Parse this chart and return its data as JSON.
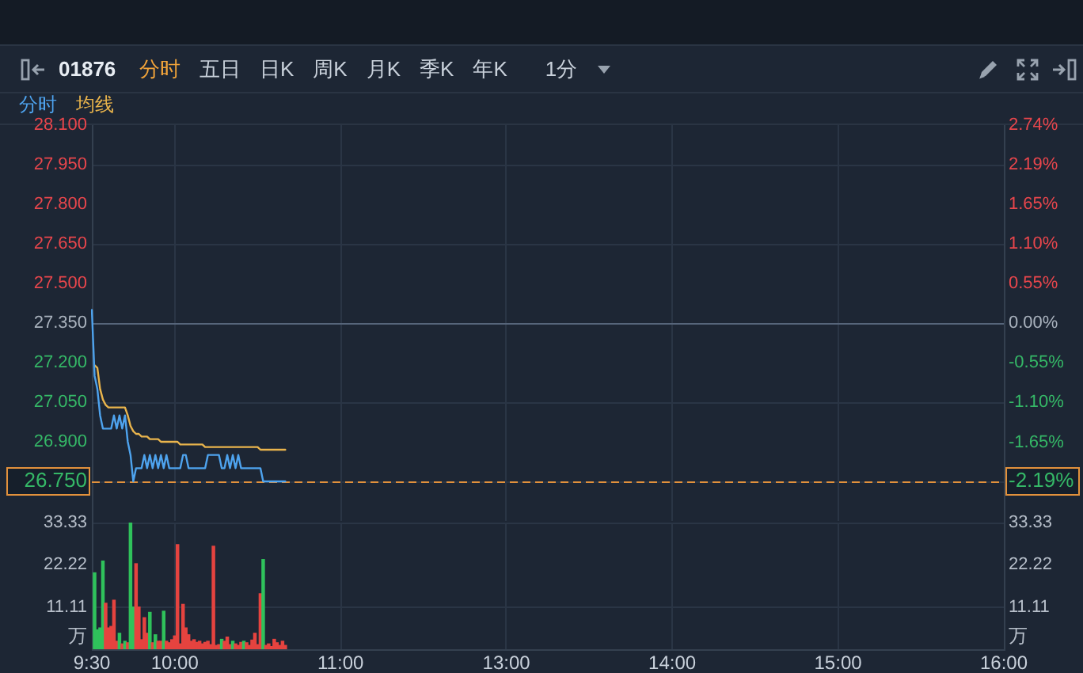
{
  "chart_data": [
    {
      "type": "line",
      "title": "01876",
      "annotations": [
        "分时",
        "五日",
        "日K",
        "周K",
        "月K",
        "季K",
        "年K",
        "1分"
      ],
      "categories": [
        null,
        null,
        null,
        null,
        null,
        null,
        null,
        null,
        null,
        null,
        null,
        null,
        null,
        null,
        null,
        null,
        null,
        null,
        null,
        null,
        null,
        null,
        null,
        null,
        null,
        null,
        null,
        null,
        null,
        null,
        null,
        null,
        null,
        null,
        null,
        null,
        null,
        null,
        null,
        null,
        null,
        null,
        null,
        null,
        null,
        null,
        null,
        null,
        null,
        null,
        null,
        null,
        null,
        null,
        null,
        null,
        null,
        null,
        null,
        null,
        null,
        null,
        null,
        null,
        null,
        null,
        null,
        null,
        null,
        null,
        null,
        null,
        null,
        null,
        null,
        null,
        null,
        null,
        null,
        null,
        null,
        null,
        null,
        null,
        null,
        null,
        null,
        null,
        null,
        null,
        null,
        null,
        null,
        null,
        null,
        null,
        null,
        null,
        null,
        null,
        null,
        null,
        null,
        null,
        null,
        null,
        null,
        null,
        null,
        null,
        null,
        null,
        null,
        null,
        null,
        null,
        null,
        null,
        null,
        null,
        null,
        null,
        null,
        null,
        null,
        null,
        null,
        null,
        null,
        null,
        null,
        null,
        null,
        null,
        null,
        null,
        null,
        null,
        null,
        null,
        null,
        null,
        null,
        null,
        null,
        null,
        null,
        null,
        null,
        null,
        null,
        null,
        null,
        null,
        null,
        null,
        null,
        null,
        null,
        null,
        null,
        null,
        null,
        null,
        null,
        null,
        null,
        null,
        null,
        null,
        null,
        null,
        null,
        null,
        null,
        null,
        null,
        null,
        null,
        null,
        null,
        null,
        null,
        null,
        null,
        null,
        null,
        null,
        null,
        null,
        null,
        null,
        null,
        null,
        null,
        null,
        null,
        null,
        null,
        null,
        null,
        null,
        null,
        null,
        null,
        null,
        null,
        null,
        null,
        null,
        null,
        null,
        null,
        null,
        null,
        null,
        null,
        null,
        null,
        null,
        null,
        null,
        null,
        null,
        null,
        null,
        null,
        null,
        null,
        null,
        null,
        null,
        null,
        null,
        null,
        null,
        null,
        null,
        null,
        null,
        null,
        null,
        null,
        null,
        null,
        null,
        null,
        null,
        null,
        null,
        null,
        null,
        null,
        null,
        null,
        null,
        null,
        null,
        null,
        null,
        null,
        null,
        null,
        null,
        null,
        null,
        null,
        null,
        null,
        null,
        null,
        null,
        null,
        null,
        null,
        null,
        null,
        null,
        null,
        null,
        null,
        null,
        null,
        null,
        null,
        null,
        null,
        null,
        null,
        null,
        null,
        null,
        null,
        null,
        null,
        null,
        null,
        null,
        null,
        null,
        null,
        null,
        null,
        null,
        null,
        null,
        null,
        null,
        null,
        null,
        null,
        null,
        null,
        null,
        null,
        null,
        null,
        null,
        null,
        null,
        null,
        null,
        null,
        null,
        null,
        null,
        null,
        null,
        null,
        null,
        null
      ],
      "series": [
        {
          "name": "分时",
          "color": "#4ea3ee",
          "values": [
            27.4,
            27.15,
            27.1,
            27.0,
            26.95,
            26.95,
            26.95,
            26.95,
            27.0,
            26.95,
            27.0,
            26.95,
            27.0,
            26.9,
            26.85,
            26.75,
            26.8,
            26.8,
            26.8,
            26.85,
            26.8,
            26.85,
            26.8,
            26.85,
            26.8,
            26.85,
            26.8,
            26.85,
            26.8,
            26.8,
            26.8,
            26.8,
            26.8,
            26.85,
            26.85,
            26.8,
            26.8,
            26.8,
            26.8,
            26.8,
            26.8,
            26.8,
            26.85,
            26.85,
            26.85,
            26.85,
            26.85,
            26.8,
            26.8,
            26.85,
            26.8,
            26.85,
            26.8,
            26.85,
            26.8,
            26.8,
            26.8,
            26.8,
            26.8,
            26.8,
            26.8,
            26.8,
            26.75,
            26.75,
            26.75,
            26.75,
            26.75,
            26.75,
            26.75,
            26.75,
            26.75,
            null,
            null,
            null,
            null,
            null,
            null,
            null,
            null,
            null,
            null,
            null,
            null,
            null,
            null,
            null,
            null,
            null,
            null,
            null,
            null,
            null,
            null,
            null,
            null,
            null,
            null,
            null,
            null,
            null,
            null,
            null,
            null,
            null,
            null,
            null,
            null,
            null,
            null,
            null,
            null,
            null,
            null,
            null,
            null,
            null,
            null,
            null,
            null,
            null,
            null,
            null,
            null,
            null,
            null,
            null,
            null,
            null,
            null,
            null,
            null,
            null,
            null,
            null,
            null,
            null,
            null,
            null,
            null,
            null,
            null,
            null,
            null,
            null,
            null,
            null,
            null,
            null,
            null,
            null,
            null,
            null,
            null,
            null,
            null,
            null,
            null,
            null,
            null,
            null,
            null,
            null,
            null,
            null,
            null,
            null,
            null,
            null,
            null,
            null,
            null,
            null,
            null,
            null,
            null,
            null,
            null,
            null,
            null,
            null,
            null,
            null,
            null,
            null,
            null,
            null,
            null,
            null,
            null,
            null,
            null,
            null,
            null,
            null,
            null,
            null,
            null,
            null,
            null,
            null,
            null,
            null,
            null,
            null,
            null,
            null,
            null,
            null,
            null,
            null,
            null,
            null,
            null,
            null,
            null,
            null,
            null,
            null,
            null,
            null,
            null,
            null,
            null,
            null,
            null,
            null,
            null,
            null,
            null,
            null,
            null,
            null,
            null,
            null,
            null,
            null,
            null,
            null,
            null,
            null,
            null,
            null,
            null,
            null,
            null,
            null,
            null,
            null,
            null,
            null,
            null,
            null,
            null,
            null,
            null,
            null,
            null,
            null,
            null,
            null,
            null,
            null,
            null,
            null,
            null,
            null,
            null,
            null,
            null,
            null,
            null,
            null,
            null,
            null,
            null,
            null,
            null,
            null,
            null,
            null,
            null,
            null,
            null,
            null,
            null,
            null,
            null,
            null,
            null,
            null,
            null,
            null,
            null,
            null,
            null,
            null,
            null,
            null,
            null,
            null,
            null,
            null,
            null,
            null,
            null,
            null,
            null,
            null,
            null,
            null,
            null,
            null,
            null,
            null,
            null,
            null,
            null,
            null,
            null,
            null,
            null,
            null,
            null,
            null,
            null,
            null,
            null,
            null,
            null,
            null,
            null
          ]
        },
        {
          "name": "均线",
          "color": "#e9b44c",
          "values": [
            null,
            27.19,
            27.18,
            27.1,
            27.06,
            27.04,
            27.03,
            27.03,
            27.03,
            27.03,
            27.03,
            27.03,
            27.03,
            27.0,
            26.96,
            26.94,
            26.93,
            26.93,
            26.92,
            26.92,
            26.92,
            26.91,
            26.91,
            26.91,
            26.91,
            26.9,
            26.9,
            26.9,
            26.9,
            26.9,
            26.9,
            26.9,
            26.89,
            26.89,
            26.89,
            26.89,
            26.89,
            26.89,
            26.89,
            26.89,
            26.89,
            26.88,
            26.88,
            26.88,
            26.88,
            26.88,
            26.88,
            26.88,
            26.88,
            26.88,
            26.88,
            26.88,
            26.88,
            26.88,
            26.88,
            26.88,
            26.88,
            26.88,
            26.88,
            26.88,
            26.88,
            26.87,
            26.87,
            26.87,
            26.87,
            26.87,
            26.87,
            26.87,
            26.87,
            26.87,
            26.87,
            null,
            null,
            null,
            null,
            null,
            null,
            null,
            null,
            null,
            null,
            null,
            null,
            null,
            null,
            null,
            null,
            null,
            null,
            null,
            null,
            null,
            null,
            null,
            null,
            null,
            null,
            null,
            null,
            null,
            null,
            null,
            null,
            null,
            null,
            null,
            null,
            null,
            null,
            null,
            null,
            null,
            null,
            null,
            null,
            null,
            null,
            null,
            null,
            null,
            null,
            null,
            null,
            null,
            null,
            null,
            null,
            null,
            null,
            null,
            null,
            null,
            null,
            null,
            null,
            null,
            null,
            null,
            null,
            null,
            null,
            null,
            null,
            null,
            null,
            null,
            null,
            null,
            null,
            null,
            null,
            null,
            null,
            null,
            null,
            null,
            null,
            null,
            null,
            null,
            null,
            null,
            null,
            null,
            null,
            null,
            null,
            null,
            null,
            null,
            null,
            null,
            null,
            null,
            null,
            null,
            null,
            null,
            null,
            null,
            null,
            null,
            null,
            null,
            null,
            null,
            null,
            null,
            null,
            null,
            null,
            null,
            null,
            null,
            null,
            null,
            null,
            null,
            null,
            null,
            null,
            null,
            null,
            null,
            null,
            null,
            null,
            null,
            null,
            null,
            null,
            null,
            null,
            null,
            null,
            null,
            null,
            null,
            null,
            null,
            null,
            null,
            null,
            null,
            null,
            null,
            null,
            null,
            null,
            null,
            null,
            null,
            null,
            null,
            null,
            null,
            null,
            null,
            null,
            null,
            null,
            null,
            null,
            null,
            null,
            null,
            null,
            null,
            null,
            null,
            null,
            null,
            null,
            null,
            null,
            null,
            null,
            null,
            null,
            null,
            null,
            null,
            null,
            null,
            null,
            null,
            null,
            null,
            null,
            null,
            null,
            null,
            null,
            null,
            null,
            null,
            null,
            null,
            null,
            null,
            null,
            null,
            null,
            null,
            null,
            null,
            null,
            null,
            null,
            null,
            null,
            null,
            null,
            null,
            null,
            null,
            null,
            null,
            null,
            null,
            null,
            null,
            null,
            null,
            null,
            null,
            null,
            null,
            null,
            null,
            null,
            null,
            null,
            null,
            null,
            null,
            null,
            null,
            null,
            null,
            null,
            null,
            null,
            null,
            null,
            null,
            null,
            null,
            null,
            null,
            null
          ]
        }
      ],
      "ylim": [
        26.6,
        28.1
      ],
      "yticks": [
        {
          "value": 26.75,
          "label": "26.750"
        },
        {
          "value": 26.9,
          "label": "26.900"
        },
        {
          "value": 27.05,
          "label": "27.050"
        },
        {
          "value": 27.2,
          "label": "27.200"
        },
        {
          "value": 27.35,
          "label": "27.350"
        },
        {
          "value": 27.5,
          "label": "27.500"
        },
        {
          "value": 27.65,
          "label": "27.650"
        },
        {
          "value": 27.8,
          "label": "27.800"
        },
        {
          "value": 27.95,
          "label": "27.950"
        },
        {
          "value": 28.1,
          "label": "28.100"
        }
      ],
      "y2lim": [
        -2.74,
        2.74
      ],
      "y2ticks": [
        {
          "value": -2.19,
          "label": "-2.19%"
        },
        {
          "value": -1.65,
          "label": "-1.65%"
        },
        {
          "value": -1.1,
          "label": "-1.10%"
        },
        {
          "value": -0.55,
          "label": "-0.55%"
        },
        {
          "value": 0,
          "label": "0.00%"
        },
        {
          "value": 0.55,
          "label": "0.55%"
        },
        {
          "value": 1.1,
          "label": "1.10%"
        },
        {
          "value": 1.65,
          "label": "1.65%"
        },
        {
          "value": 2.19,
          "label": "2.19%"
        },
        {
          "value": 2.74,
          "label": "2.74%"
        }
      ],
      "ref_lines": [
        {
          "axis": "y",
          "value": 27.35,
          "color": "#56657a"
        },
        {
          "axis": "y",
          "value": 26.75,
          "color": "#e2913c",
          "line_style": "dashed"
        }
      ],
      "grid": true,
      "legend": "top left",
      "tick_labels": "y"
    },
    {
      "type": "bar",
      "categories": [
        "9:30",
        null,
        null,
        null,
        null,
        null,
        null,
        null,
        null,
        null,
        null,
        null,
        null,
        null,
        null,
        null,
        null,
        null,
        null,
        null,
        null,
        null,
        null,
        null,
        null,
        null,
        null,
        null,
        null,
        null,
        "10:00",
        null,
        null,
        null,
        null,
        null,
        null,
        null,
        null,
        null,
        null,
        null,
        null,
        null,
        null,
        null,
        null,
        null,
        null,
        null,
        null,
        null,
        null,
        null,
        null,
        null,
        null,
        null,
        null,
        null,
        null,
        null,
        null,
        null,
        null,
        null,
        null,
        null,
        null,
        null,
        null,
        null,
        null,
        null,
        null,
        null,
        null,
        null,
        null,
        null,
        null,
        null,
        null,
        null,
        null,
        null,
        null,
        null,
        null,
        null,
        "11:00",
        null,
        null,
        null,
        null,
        null,
        null,
        null,
        null,
        null,
        null,
        null,
        null,
        null,
        null,
        null,
        null,
        null,
        null,
        null,
        null,
        null,
        null,
        null,
        null,
        null,
        null,
        null,
        null,
        null,
        null,
        null,
        null,
        null,
        null,
        null,
        null,
        null,
        null,
        null,
        null,
        null,
        null,
        null,
        null,
        null,
        null,
        null,
        null,
        null,
        null,
        null,
        null,
        null,
        null,
        null,
        null,
        null,
        null,
        null,
        "13:00",
        null,
        null,
        null,
        null,
        null,
        null,
        null,
        null,
        null,
        null,
        null,
        null,
        null,
        null,
        null,
        null,
        null,
        null,
        null,
        null,
        null,
        null,
        null,
        null,
        null,
        null,
        null,
        null,
        null,
        null,
        null,
        null,
        null,
        null,
        null,
        null,
        null,
        null,
        null,
        null,
        null,
        null,
        null,
        null,
        null,
        null,
        null,
        null,
        null,
        null,
        null,
        null,
        null,
        null,
        null,
        null,
        null,
        null,
        null,
        "14:00",
        null,
        null,
        null,
        null,
        null,
        null,
        null,
        null,
        null,
        null,
        null,
        null,
        null,
        null,
        null,
        null,
        null,
        null,
        null,
        null,
        null,
        null,
        null,
        null,
        null,
        null,
        null,
        null,
        null,
        null,
        null,
        null,
        null,
        null,
        null,
        null,
        null,
        null,
        null,
        null,
        null,
        null,
        null,
        null,
        null,
        null,
        null,
        null,
        null,
        null,
        null,
        null,
        null,
        null,
        null,
        null,
        null,
        null,
        null,
        "15:00",
        null,
        null,
        null,
        null,
        null,
        null,
        null,
        null,
        null,
        null,
        null,
        null,
        null,
        null,
        null,
        null,
        null,
        null,
        null,
        null,
        null,
        null,
        null,
        null,
        null,
        null,
        null,
        null,
        null,
        null,
        null,
        null,
        null,
        null,
        null,
        null,
        null,
        null,
        null,
        null,
        null,
        null,
        null,
        null,
        null,
        null,
        null,
        null,
        null,
        null,
        null,
        null,
        null,
        null,
        null,
        null,
        null,
        null,
        null,
        "16:00"
      ],
      "values": [
        null,
        20.1,
        5.1,
        5.6,
        23.2,
        12.1,
        5.6,
        6.0,
        12.9,
        2.1,
        4.2,
        1.4,
        2.1,
        1.7,
        33.3,
        11.1,
        22.5,
        11.1,
        2.5,
        8.3,
        4.2,
        9.7,
        1.7,
        3.8,
        2.1,
        2.1,
        10.0,
        2.1,
        1.7,
        2.5,
        3.5,
        27.5,
        1.4,
        11.8,
        5.6,
        3.8,
        2.1,
        2.5,
        1.8,
        2.1,
        1.4,
        1.8,
        2.1,
        1.2,
        27.1,
        1.0,
        1.2,
        2.6,
        2.1,
        3.2,
        1.2,
        2.1,
        1.4,
        1.0,
        1.8,
        2.1,
        1.7,
        1.0,
        2.4,
        4.2,
        1.2,
        14.6,
        23.6,
        1.0,
        1.4,
        0.7,
        2.6,
        1.7,
        1.0,
        2.1,
        1.0,
        null,
        null,
        null,
        null,
        null,
        null,
        null,
        null,
        null,
        null,
        null,
        null,
        null,
        null,
        null,
        null,
        null,
        null,
        null,
        null,
        null,
        null,
        null,
        null,
        null,
        null,
        null,
        null,
        null,
        null,
        null,
        null,
        null,
        null,
        null,
        null,
        null,
        null,
        null,
        null,
        null,
        null,
        null,
        null,
        null,
        null,
        null,
        null,
        null,
        null,
        null,
        null,
        null,
        null,
        null,
        null,
        null,
        null,
        null,
        null,
        null,
        null,
        null,
        null,
        null,
        null,
        null,
        null,
        null,
        null,
        null,
        null,
        null,
        null,
        null,
        null,
        null,
        null,
        null,
        null,
        null,
        null,
        null,
        null,
        null,
        null,
        null,
        null,
        null,
        null,
        null,
        null,
        null,
        null,
        null,
        null,
        null,
        null,
        null,
        null,
        null,
        null,
        null,
        null,
        null,
        null,
        null,
        null,
        null,
        null,
        null,
        null,
        null,
        null,
        null,
        null,
        null,
        null,
        null,
        null,
        null,
        null,
        null,
        null,
        null,
        null,
        null,
        null,
        null,
        null,
        null,
        null,
        null,
        null,
        null,
        null,
        null,
        null,
        null,
        null,
        null,
        null,
        null,
        null,
        null,
        null,
        null,
        null,
        null,
        null,
        null,
        null,
        null,
        null,
        null,
        null,
        null,
        null,
        null,
        null,
        null,
        null,
        null,
        null,
        null,
        null,
        null,
        null,
        null,
        null,
        null,
        null,
        null,
        null,
        null,
        null,
        null,
        null,
        null,
        null,
        null,
        null,
        null,
        null,
        null,
        null,
        null,
        null,
        null,
        null,
        null,
        null,
        null,
        null,
        null,
        null,
        null,
        null,
        null,
        null,
        null,
        null,
        null,
        null,
        null,
        null,
        null,
        null,
        null,
        null,
        null,
        null,
        null,
        null,
        null,
        null,
        null,
        null,
        null,
        null,
        null,
        null,
        null,
        null,
        null,
        null,
        null,
        null,
        null,
        null,
        null,
        null,
        null,
        null,
        null,
        null,
        null,
        null,
        null,
        null,
        null,
        null,
        null,
        null,
        null,
        null,
        null,
        null,
        null,
        null,
        null,
        null,
        null,
        null,
        null,
        null,
        null,
        null,
        null,
        null
      ],
      "colors": [
        null,
        "#2fc25b",
        "#2fc25b",
        "#2fc25b",
        "#2fc25b",
        "#e5433f",
        "#e5433f",
        "#e5433f",
        "#e5433f",
        "#e5433f",
        "#2fc25b",
        "#e5433f",
        "#2fc25b",
        "#e5433f",
        "#2fc25b",
        "#2fc25b",
        "#e5433f",
        "#e5433f",
        "#e5433f",
        "#e5433f",
        "#e5433f",
        "#2fc25b",
        "#e5433f",
        "#2fc25b",
        "#e5433f",
        "#e5433f",
        "#2fc25b",
        "#e5433f",
        "#e5433f",
        "#e5433f",
        "#e5433f",
        "#e5433f",
        "#e5433f",
        "#e5433f",
        "#e5433f",
        "#e5433f",
        "#e5433f",
        "#e5433f",
        "#e5433f",
        "#e5433f",
        "#e5433f",
        "#e5433f",
        "#e5433f",
        "#e5433f",
        "#e5433f",
        "#e5433f",
        "#e5433f",
        "#2fc25b",
        "#e5433f",
        "#e5433f",
        "#e5433f",
        "#2fc25b",
        "#e5433f",
        "#e5433f",
        "#e5433f",
        "#2fc25b",
        "#e5433f",
        "#e5433f",
        "#e5433f",
        "#e5433f",
        "#e5433f",
        "#e5433f",
        "#2fc25b",
        "#e5433f",
        "#e5433f",
        "#e5433f",
        "#e5433f",
        "#e5433f",
        "#e5433f",
        "#e5433f",
        "#e5433f",
        null,
        null,
        null,
        null,
        null,
        null,
        null,
        null,
        null,
        null,
        null,
        null,
        null,
        null,
        null,
        null,
        null,
        null,
        null,
        null,
        null,
        null,
        null,
        null,
        null,
        null,
        null,
        null,
        null,
        null,
        null,
        null,
        null,
        null,
        null,
        null,
        null,
        null,
        null,
        null,
        null,
        null,
        null,
        null,
        null,
        null,
        null,
        null,
        null,
        null,
        null,
        null,
        null,
        null,
        null,
        null,
        null,
        null,
        null,
        null,
        null,
        null,
        null,
        null,
        null,
        null,
        null,
        null,
        null,
        null,
        null,
        null,
        null,
        null,
        null,
        null,
        null,
        null,
        null,
        null,
        null,
        null,
        null,
        null,
        null,
        null,
        null,
        null,
        null,
        null,
        null,
        null,
        null,
        null,
        null,
        null,
        null,
        null,
        null,
        null,
        null,
        null,
        null,
        null,
        null,
        null,
        null,
        null,
        null,
        null,
        null,
        null,
        null,
        null,
        null,
        null,
        null,
        null,
        null,
        null,
        null,
        null,
        null,
        null,
        null,
        null,
        null,
        null,
        null,
        null,
        null,
        null,
        null,
        null,
        null,
        null,
        null,
        null,
        null,
        null,
        null,
        null,
        null,
        null,
        null,
        null,
        null,
        null,
        null,
        null,
        null,
        null,
        null,
        null,
        null,
        null,
        null,
        null,
        null,
        null,
        null,
        null,
        null,
        null,
        null,
        null,
        null,
        null,
        null,
        null,
        null,
        null,
        null,
        null,
        null,
        null,
        null,
        null,
        null,
        null,
        null,
        null,
        null,
        null,
        null,
        null,
        null,
        null,
        null,
        null,
        null,
        null,
        null,
        null,
        null,
        null,
        null,
        null,
        null,
        null,
        null,
        null,
        null,
        null,
        null,
        null,
        null,
        null,
        null,
        null,
        null,
        null,
        null,
        null,
        null,
        null,
        null,
        null,
        null,
        null,
        null,
        null,
        null,
        null,
        null,
        null,
        null,
        null,
        null,
        null,
        null,
        null,
        null,
        null,
        null,
        null,
        null,
        null,
        null,
        null,
        null,
        null,
        null,
        null,
        null,
        null,
        null,
        null,
        null,
        null,
        null,
        null,
        null,
        null,
        null,
        null,
        null,
        null,
        null,
        null
      ],
      "ylim": [
        0,
        33.33
      ],
      "yticks": [
        11.11,
        22.22,
        33.33
      ],
      "y2lim": [
        0,
        33.33
      ],
      "y2ticks": [
        11.11,
        22.22,
        33.33
      ],
      "ylabel": "万",
      "y2label": "万",
      "grid": true
    }
  ]
}
